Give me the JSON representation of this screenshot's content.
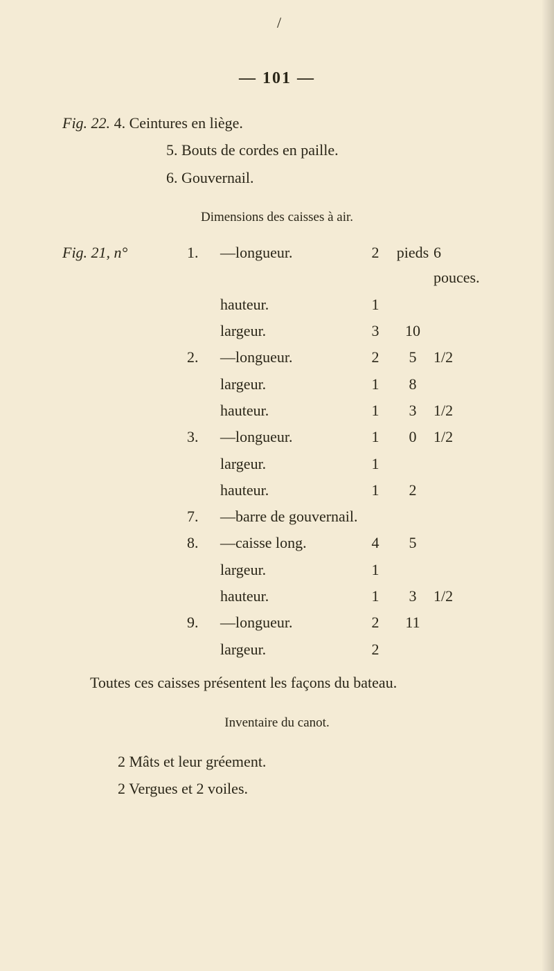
{
  "page": {
    "slash": "/",
    "header": "— 101 —",
    "background_color": "#f4ebd5",
    "text_color": "#2a2618"
  },
  "top_entries": {
    "line1_prefix": "Fig. 22. ",
    "line1_num": "4. ",
    "line1_text": "Ceintures en liège.",
    "line2_num": "5. ",
    "line2_text": "Bouts de cordes en paille.",
    "line3_num": "6. ",
    "line3_text": "Gouvernail."
  },
  "dim_section": {
    "heading": "Dimensions des caisses à air.",
    "prefix": "Fig. 21, n°",
    "rows": [
      {
        "num": "1.",
        "label": "—longueur.",
        "v1": "2",
        "v2": "pieds",
        "v3": "6 pouces."
      },
      {
        "num": "",
        "label": "hauteur.",
        "v1": "1",
        "v2": "",
        "v3": ""
      },
      {
        "num": "",
        "label": "largeur.",
        "v1": "3",
        "v2": "10",
        "v3": ""
      },
      {
        "num": "2.",
        "label": "—longueur.",
        "v1": "2",
        "v2": "5",
        "v3": "1/2"
      },
      {
        "num": "",
        "label": "largeur.",
        "v1": "1",
        "v2": "8",
        "v3": ""
      },
      {
        "num": "",
        "label": "hauteur.",
        "v1": "1",
        "v2": "3",
        "v3": "1/2"
      },
      {
        "num": "3.",
        "label": "—longueur.",
        "v1": "1",
        "v2": "0",
        "v3": "1/2"
      },
      {
        "num": "",
        "label": "largeur.",
        "v1": "1",
        "v2": "",
        "v3": ""
      },
      {
        "num": "",
        "label": "hauteur.",
        "v1": "1",
        "v2": "2",
        "v3": ""
      },
      {
        "num": "7.",
        "label": "—barre de gouvernail.",
        "v1": "",
        "v2": "",
        "v3": ""
      },
      {
        "num": "8.",
        "label": "—caisse long.",
        "v1": "4",
        "v2": "5",
        "v3": ""
      },
      {
        "num": "",
        "label": "largeur.",
        "v1": "1",
        "v2": "",
        "v3": ""
      },
      {
        "num": "",
        "label": "hauteur.",
        "v1": "1",
        "v2": "3",
        "v3": "1/2"
      },
      {
        "num": "9.",
        "label": "—longueur.",
        "v1": "2",
        "v2": "11",
        "v3": ""
      },
      {
        "num": "",
        "label": "largeur.",
        "v1": "2",
        "v2": "",
        "v3": ""
      }
    ]
  },
  "closing_para": "Toutes ces caisses présentent les façons du bateau.",
  "inventory": {
    "heading": "Inventaire du canot.",
    "line1": "2 Mâts et leur gréement.",
    "line2": "2 Vergues et 2 voiles."
  }
}
